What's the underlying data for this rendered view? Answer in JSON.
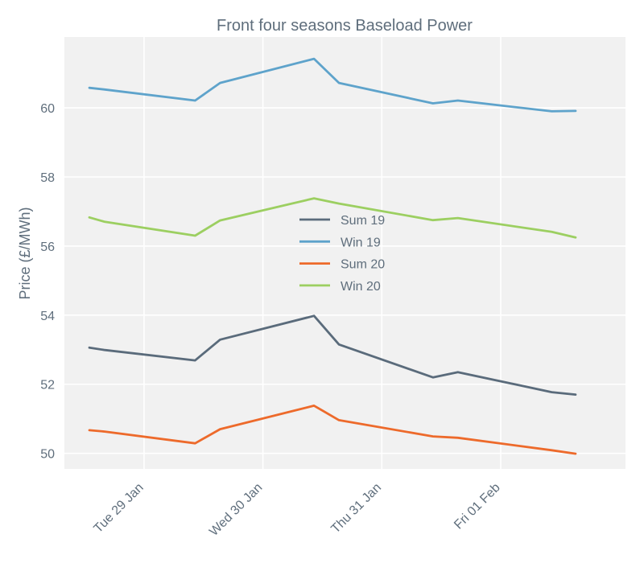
{
  "chart_data": {
    "type": "line",
    "title": "Front four seasons Baseload Power",
    "xlabel": "",
    "ylabel": "Price (£/MWh)",
    "x_unit": "days since 28 Jan 00:00",
    "xlim": [
      0.33,
      5.05
    ],
    "ylim": [
      49.55,
      62.05
    ],
    "grid": true,
    "legend_position": "center",
    "x_ticks": [
      {
        "value": 1,
        "label": "Tue 29 Jan"
      },
      {
        "value": 2,
        "label": "Wed 30 Jan"
      },
      {
        "value": 3,
        "label": "Thu 31 Jan"
      },
      {
        "value": 4,
        "label": "Fri 01 Feb"
      }
    ],
    "y_ticks": [
      50,
      52,
      54,
      56,
      58,
      60
    ],
    "x": [
      0.54,
      0.67,
      1.43,
      1.64,
      2.43,
      2.64,
      3.43,
      3.64,
      4.43,
      4.63
    ],
    "series": [
      {
        "name": "Sum 19",
        "color": "#5a6b7b",
        "values": [
          53.06,
          52.99,
          52.69,
          53.29,
          53.98,
          53.15,
          52.2,
          52.35,
          51.77,
          51.7
        ]
      },
      {
        "name": "Win 19",
        "color": "#5ea3cb",
        "values": [
          60.58,
          60.53,
          60.21,
          60.72,
          61.42,
          60.72,
          60.13,
          60.21,
          59.9,
          59.91
        ]
      },
      {
        "name": "Sum 20",
        "color": "#ed6a2b",
        "values": [
          50.67,
          50.63,
          50.29,
          50.7,
          51.38,
          50.96,
          50.49,
          50.45,
          50.09,
          49.99
        ]
      },
      {
        "name": "Win 20",
        "color": "#9ccf61",
        "values": [
          56.83,
          56.7,
          56.3,
          56.74,
          57.38,
          57.23,
          56.75,
          56.81,
          56.41,
          56.25
        ]
      }
    ]
  }
}
